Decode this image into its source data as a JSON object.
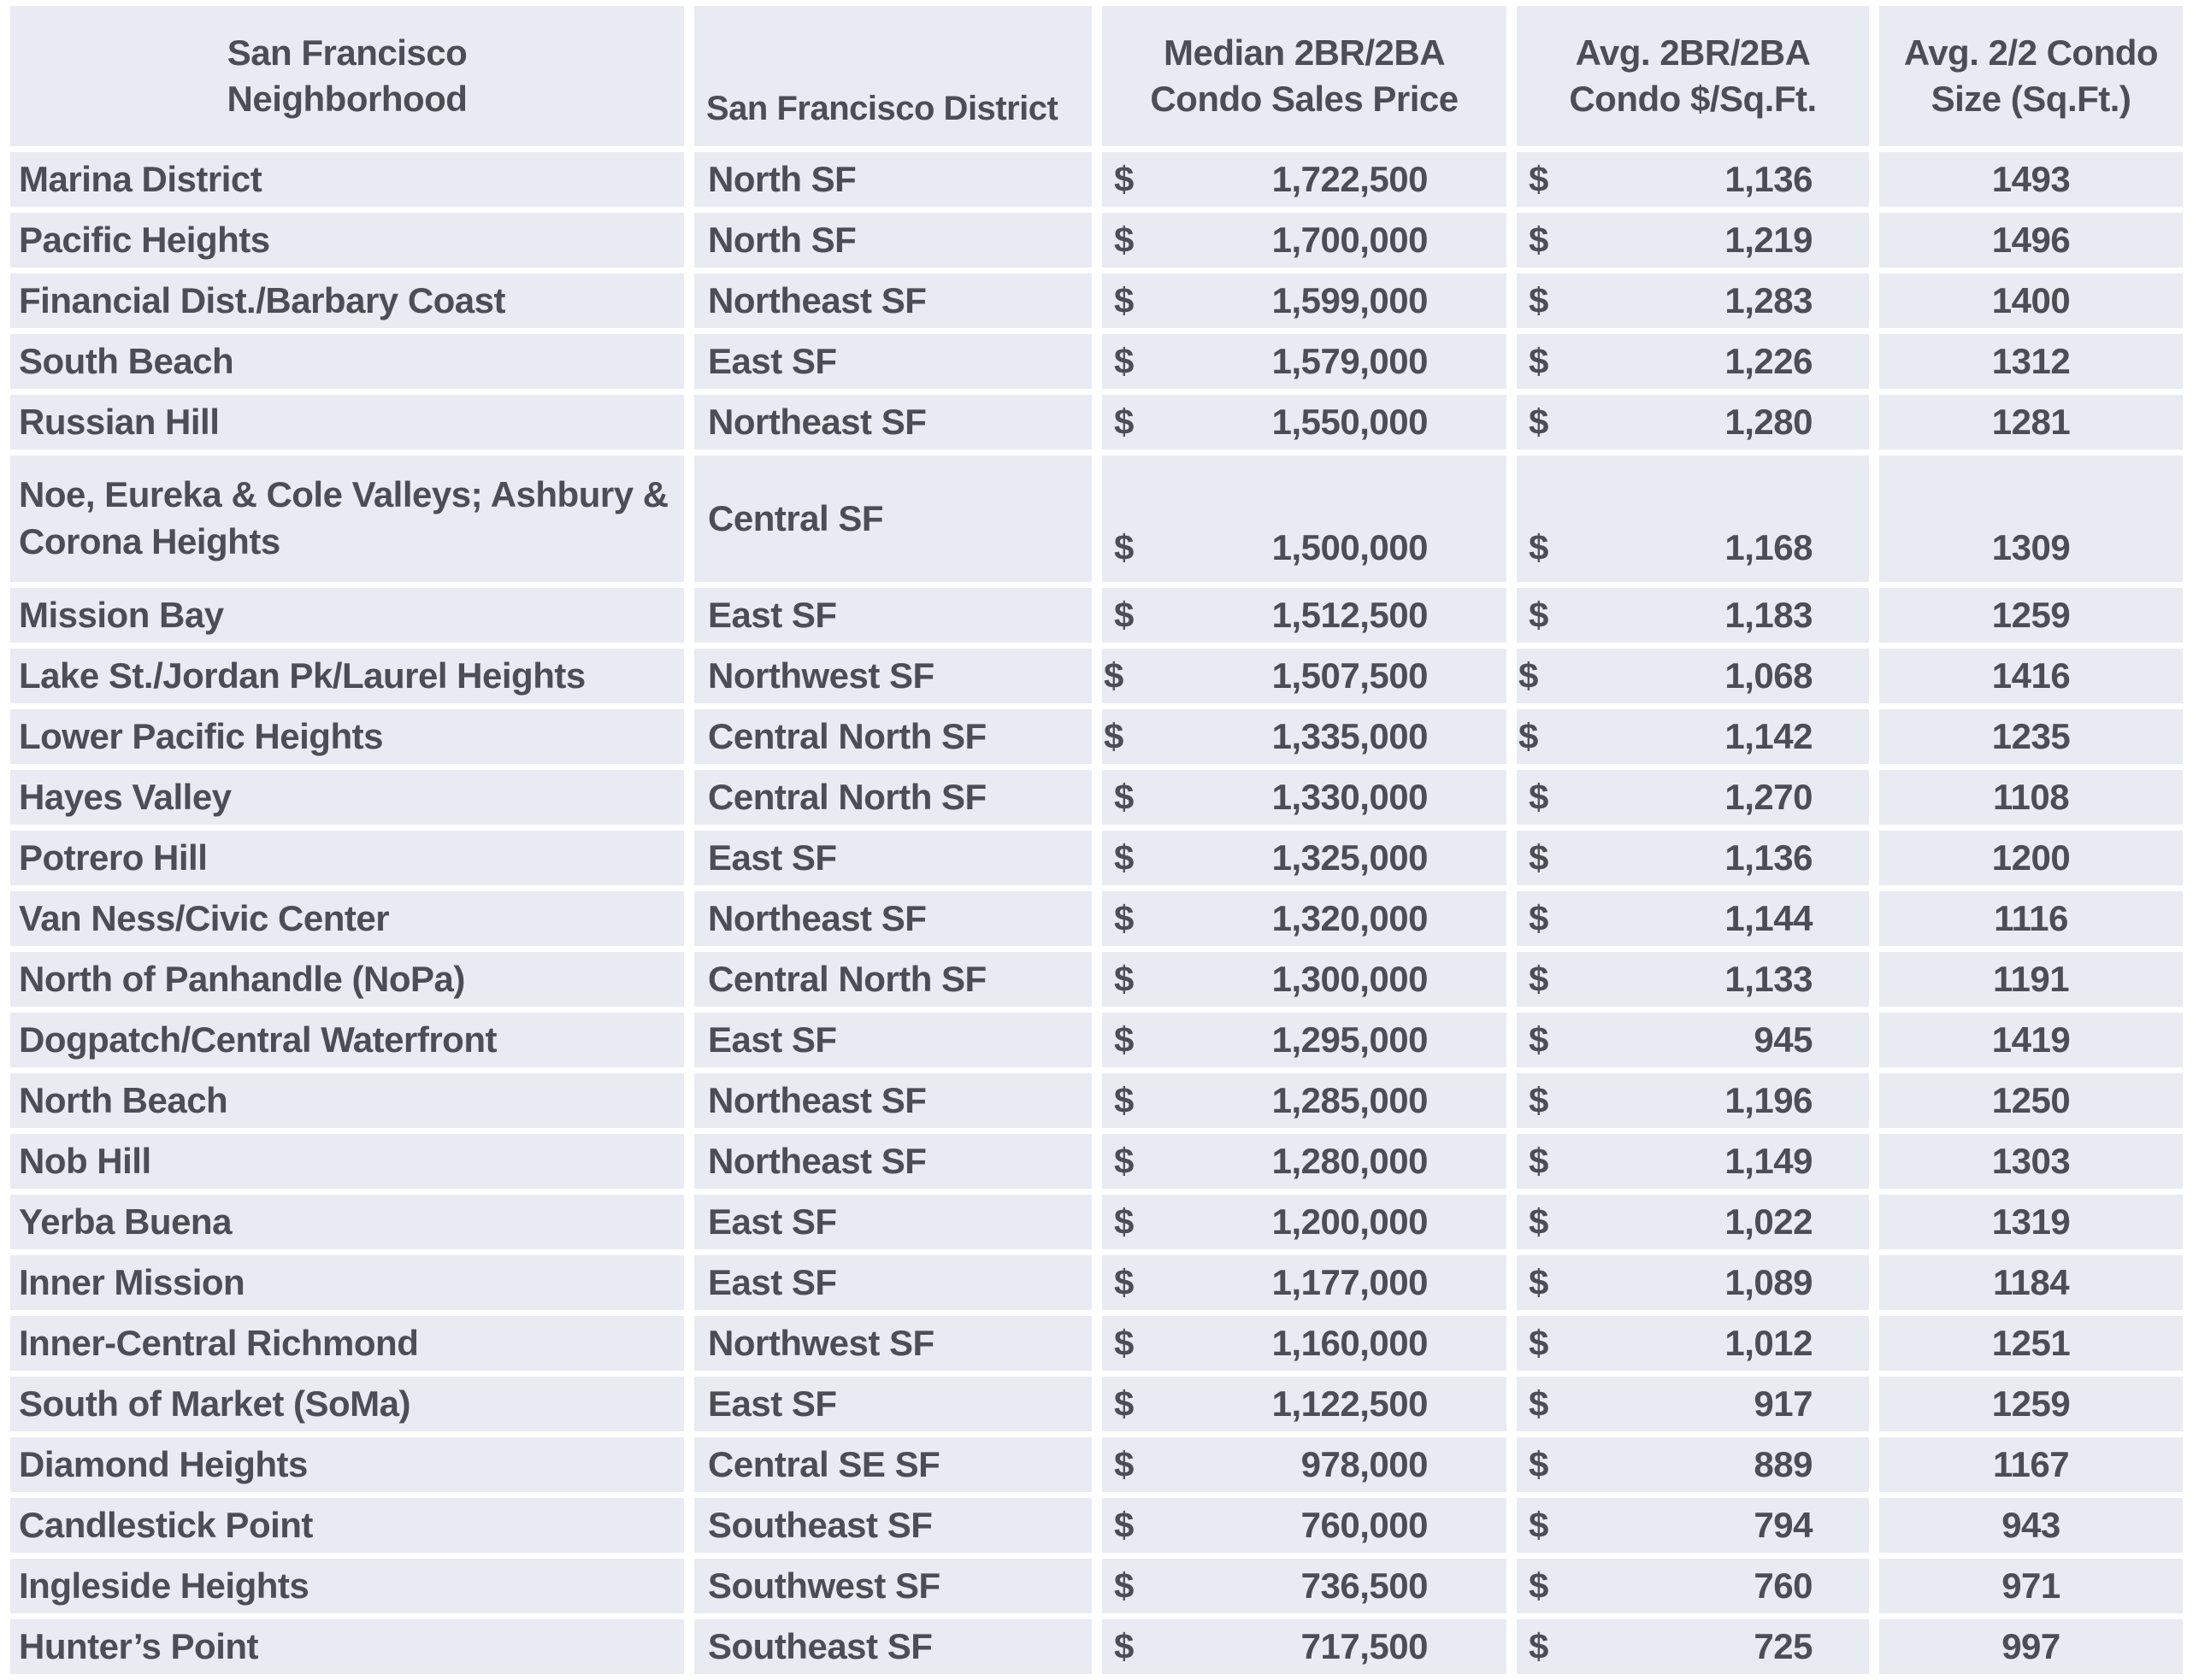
{
  "colors": {
    "cell_background": "#e9ebf3",
    "gridline": "#ffffff",
    "text": "#4c4e55"
  },
  "table": {
    "currency_symbol": "$",
    "columns": [
      {
        "id": "neighborhood",
        "lines": [
          "San Francisco",
          "Neighborhood"
        ]
      },
      {
        "id": "district",
        "lines": [
          "San Francisco District"
        ]
      },
      {
        "id": "median_price",
        "lines": [
          "Median 2BR/2BA",
          "Condo Sales Price"
        ]
      },
      {
        "id": "price_per_sqft",
        "lines": [
          "Avg. 2BR/2BA",
          "Condo $/Sq.Ft."
        ]
      },
      {
        "id": "condo_size",
        "lines": [
          "Avg. 2/2 Condo",
          "Size (Sq.Ft.)"
        ]
      }
    ],
    "rows": [
      {
        "neighborhood": "Marina District",
        "district": "North SF",
        "median_price": "1,722,500",
        "price_per_sqft": "1,136",
        "condo_size": "1493"
      },
      {
        "neighborhood": "Pacific Heights",
        "district": "North SF",
        "median_price": "1,700,000",
        "price_per_sqft": "1,219",
        "condo_size": "1496"
      },
      {
        "neighborhood": "Financial Dist./Barbary Coast",
        "district": "Northeast SF",
        "median_price": "1,599,000",
        "price_per_sqft": "1,283",
        "condo_size": "1400"
      },
      {
        "neighborhood": "South Beach",
        "district": "East SF",
        "median_price": "1,579,000",
        "price_per_sqft": "1,226",
        "condo_size": "1312"
      },
      {
        "neighborhood": "Russian Hill",
        "district": "Northeast SF",
        "median_price": "1,550,000",
        "price_per_sqft": "1,280",
        "condo_size": "1281"
      },
      {
        "neighborhood": "Noe, Eureka & Cole Valleys; Ashbury & Corona Heights",
        "district": "Central SF",
        "median_price": "1,500,000",
        "price_per_sqft": "1,168",
        "condo_size": "1309",
        "tall": true
      },
      {
        "neighborhood": "Mission Bay",
        "district": "East SF",
        "median_price": "1,512,500",
        "price_per_sqft": "1,183",
        "condo_size": "1259"
      },
      {
        "neighborhood": "Lake St./Jordan Pk/Laurel Heights",
        "district": "Northwest SF",
        "median_price": "1,507,500",
        "price_per_sqft": "1,068",
        "condo_size": "1416",
        "flush_dollar": true
      },
      {
        "neighborhood": "Lower Pacific Heights",
        "district": "Central North SF",
        "median_price": "1,335,000",
        "price_per_sqft": "1,142",
        "condo_size": "1235",
        "flush_dollar": true
      },
      {
        "neighborhood": "Hayes Valley",
        "district": "Central North SF",
        "median_price": "1,330,000",
        "price_per_sqft": "1,270",
        "condo_size": "1108"
      },
      {
        "neighborhood": "Potrero Hill",
        "district": "East SF",
        "median_price": "1,325,000",
        "price_per_sqft": "1,136",
        "condo_size": "1200"
      },
      {
        "neighborhood": "Van Ness/Civic Center",
        "district": "Northeast SF",
        "median_price": "1,320,000",
        "price_per_sqft": "1,144",
        "condo_size": "1116"
      },
      {
        "neighborhood": "North of Panhandle (NoPa)",
        "district": "Central North SF",
        "median_price": "1,300,000",
        "price_per_sqft": "1,133",
        "condo_size": "1191"
      },
      {
        "neighborhood": "Dogpatch/Central Waterfront",
        "district": "East SF",
        "median_price": "1,295,000",
        "price_per_sqft": "945",
        "condo_size": "1419"
      },
      {
        "neighborhood": "North Beach",
        "district": "Northeast SF",
        "median_price": "1,285,000",
        "price_per_sqft": "1,196",
        "condo_size": "1250"
      },
      {
        "neighborhood": "Nob Hill",
        "district": "Northeast SF",
        "median_price": "1,280,000",
        "price_per_sqft": "1,149",
        "condo_size": "1303"
      },
      {
        "neighborhood": "Yerba Buena",
        "district": "East SF",
        "median_price": "1,200,000",
        "price_per_sqft": "1,022",
        "condo_size": "1319"
      },
      {
        "neighborhood": "Inner Mission",
        "district": "East SF",
        "median_price": "1,177,000",
        "price_per_sqft": "1,089",
        "condo_size": "1184"
      },
      {
        "neighborhood": "Inner-Central Richmond",
        "district": "Northwest SF",
        "median_price": "1,160,000",
        "price_per_sqft": "1,012",
        "condo_size": "1251"
      },
      {
        "neighborhood": "South of Market (SoMa)",
        "district": "East SF",
        "median_price": "1,122,500",
        "price_per_sqft": "917",
        "condo_size": "1259"
      },
      {
        "neighborhood": "Diamond Heights",
        "district": "Central SE SF",
        "median_price": "978,000",
        "price_per_sqft": "889",
        "condo_size": "1167"
      },
      {
        "neighborhood": "Candlestick Point",
        "district": "Southeast SF",
        "median_price": "760,000",
        "price_per_sqft": "794",
        "condo_size": "943"
      },
      {
        "neighborhood": "Ingleside Heights",
        "district": "Southwest SF",
        "median_price": "736,500",
        "price_per_sqft": "760",
        "condo_size": "971"
      },
      {
        "neighborhood": "Hunter’s Point",
        "district": "Southeast SF",
        "median_price": "717,500",
        "price_per_sqft": "725",
        "condo_size": "997"
      }
    ]
  },
  "chart_data": {
    "type": "table",
    "title": "",
    "columns": [
      "San Francisco Neighborhood",
      "San Francisco District",
      "Median 2BR/2BA Condo Sales Price",
      "Avg. 2BR/2BA Condo $/Sq.Ft.",
      "Avg. 2/2 Condo Size (Sq.Ft.)"
    ],
    "rows": [
      [
        "Marina District",
        "North SF",
        1722500,
        1136,
        1493
      ],
      [
        "Pacific Heights",
        "North SF",
        1700000,
        1219,
        1496
      ],
      [
        "Financial Dist./Barbary Coast",
        "Northeast SF",
        1599000,
        1283,
        1400
      ],
      [
        "South Beach",
        "East SF",
        1579000,
        1226,
        1312
      ],
      [
        "Russian Hill",
        "Northeast SF",
        1550000,
        1280,
        1281
      ],
      [
        "Noe, Eureka & Cole Valleys; Ashbury & Corona Heights",
        "Central SF",
        1500000,
        1168,
        1309
      ],
      [
        "Mission Bay",
        "East SF",
        1512500,
        1183,
        1259
      ],
      [
        "Lake St./Jordan Pk/Laurel Heights",
        "Northwest SF",
        1507500,
        1068,
        1416
      ],
      [
        "Lower Pacific Heights",
        "Central North SF",
        1335000,
        1142,
        1235
      ],
      [
        "Hayes Valley",
        "Central North SF",
        1330000,
        1270,
        1108
      ],
      [
        "Potrero Hill",
        "East SF",
        1325000,
        1136,
        1200
      ],
      [
        "Van Ness/Civic Center",
        "Northeast SF",
        1320000,
        1144,
        1116
      ],
      [
        "North of Panhandle (NoPa)",
        "Central North SF",
        1300000,
        1133,
        1191
      ],
      [
        "Dogpatch/Central Waterfront",
        "East SF",
        1295000,
        945,
        1419
      ],
      [
        "North Beach",
        "Northeast SF",
        1285000,
        1196,
        1250
      ],
      [
        "Nob Hill",
        "Northeast SF",
        1280000,
        1149,
        1303
      ],
      [
        "Yerba Buena",
        "East SF",
        1200000,
        1022,
        1319
      ],
      [
        "Inner Mission",
        "East SF",
        1177000,
        1089,
        1184
      ],
      [
        "Inner-Central Richmond",
        "Northwest SF",
        1160000,
        1012,
        1251
      ],
      [
        "South of Market (SoMa)",
        "East SF",
        1122500,
        917,
        1259
      ],
      [
        "Diamond Heights",
        "Central SE SF",
        978000,
        889,
        1167
      ],
      [
        "Candlestick Point",
        "Southeast SF",
        760000,
        794,
        943
      ],
      [
        "Ingleside Heights",
        "Southwest SF",
        736500,
        760,
        971
      ],
      [
        "Hunter’s Point",
        "Southeast SF",
        717500,
        725,
        997
      ]
    ]
  }
}
